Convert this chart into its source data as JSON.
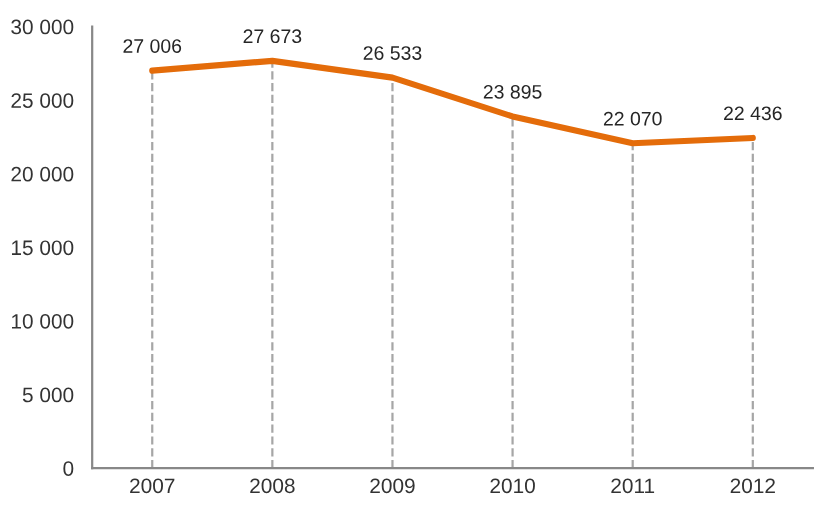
{
  "chart_data": {
    "type": "line",
    "categories": [
      "2007",
      "2008",
      "2009",
      "2010",
      "2011",
      "2012"
    ],
    "series": [
      {
        "color": "#e46c0a",
        "values": [
          27006,
          27673,
          26533,
          23895,
          22070,
          22436
        ],
        "value_labels": [
          "27 006",
          "27 673",
          "26 533",
          "23 895",
          "22 070",
          "22 436"
        ]
      }
    ],
    "ylim": [
      0,
      30000
    ],
    "yticks": [
      {
        "value": 0,
        "label": "0"
      },
      {
        "value": 5000,
        "label": "5 000"
      },
      {
        "value": 10000,
        "label": "10 000"
      },
      {
        "value": 15000,
        "label": "15 000"
      },
      {
        "value": 20000,
        "label": "20 000"
      },
      {
        "value": 25000,
        "label": "25 000"
      },
      {
        "value": 30000,
        "label": "30 000"
      }
    ],
    "ref_lines": [
      {
        "axis": "x",
        "value": "2007",
        "color": "#a6a6a6",
        "line_style": "dashed"
      },
      {
        "axis": "x",
        "value": "2008",
        "color": "#a6a6a6",
        "line_style": "dashed"
      },
      {
        "axis": "x",
        "value": "2009",
        "color": "#a6a6a6",
        "line_style": "dashed"
      },
      {
        "axis": "x",
        "value": "2010",
        "color": "#a6a6a6",
        "line_style": "dashed"
      },
      {
        "axis": "x",
        "value": "2011",
        "color": "#a6a6a6",
        "line_style": "dashed"
      },
      {
        "axis": "x",
        "value": "2012",
        "color": "#a6a6a6",
        "line_style": "dashed"
      }
    ],
    "grid": false,
    "legend": false,
    "marker": "none",
    "line_style": "solid"
  }
}
